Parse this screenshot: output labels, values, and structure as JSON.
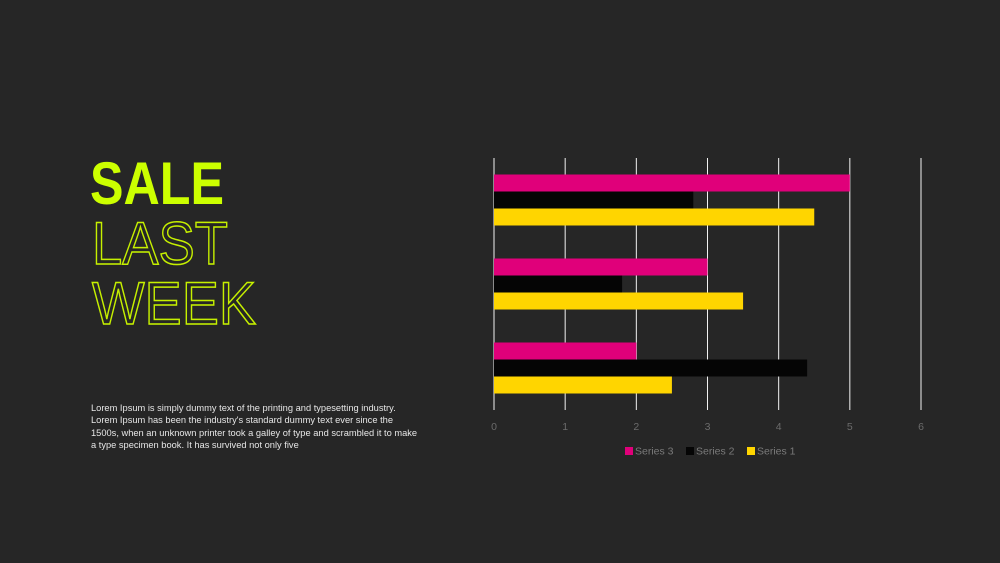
{
  "heading": [
    "SALE",
    "LAST",
    "WEEK"
  ],
  "body": "Lorem Ipsum is simply dummy text of the printing and typesetting industry. Lorem Ipsum has been the industry's standard dummy text ever since the 1500s, when an unknown printer took a galley of type and scrambled it to make a type specimen book. It has survived not only five",
  "chart_data": {
    "type": "hbar",
    "categories": [
      null,
      null,
      null
    ],
    "series": [
      {
        "name": "Series 1",
        "color": "#ffd500",
        "values": [
          2.5,
          3.5,
          4.5
        ]
      },
      {
        "name": "Series 2",
        "color": "#050505",
        "values": [
          4.4,
          1.8,
          2.8
        ]
      },
      {
        "name": "Series 3",
        "color": "#e0007a",
        "values": [
          2,
          3,
          5
        ]
      }
    ],
    "xlim": [
      0,
      6
    ],
    "xticks": [
      0,
      1,
      2,
      3,
      4,
      5,
      6
    ],
    "grid": true,
    "legend": "bottom"
  }
}
